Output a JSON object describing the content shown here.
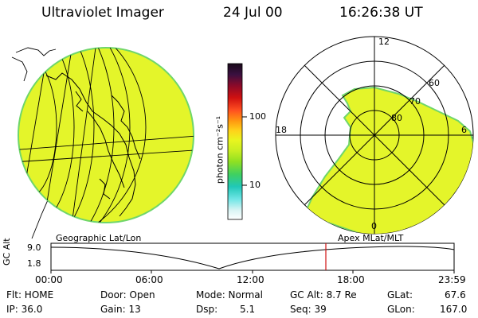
{
  "header": {
    "instrument": "Ultraviolet Imager",
    "date": "24 Jul 00",
    "time": "16:26:38 UT"
  },
  "colors": {
    "fill_main": "#e4f52a",
    "fill_edge": "#6fd66a",
    "grid": "#000000"
  },
  "colorbar": {
    "unit": "photon cm⁻²s⁻¹",
    "ticks": [
      "100",
      "10"
    ],
    "stops": [
      "#1a0a1a",
      "#3a1040",
      "#8a0a2a",
      "#d01010",
      "#ff5020",
      "#ff9a10",
      "#ffd21a",
      "#e9f51f",
      "#c8ee22",
      "#8fe022",
      "#40d060",
      "#20c8b8",
      "#70e6e6",
      "#d8f4f4",
      "#ffffff"
    ]
  },
  "left_panel": {
    "label": "Geographic Lat/Lon"
  },
  "right_panel": {
    "label": "Apex MLat/MLT",
    "mlt_labels": {
      "top": "12",
      "left": "18",
      "right": "6",
      "bottom": "0"
    },
    "lat_labels": [
      "60",
      "70",
      "80"
    ]
  },
  "timeline": {
    "ylabel": "GC Alt",
    "yticks": [
      "9.0",
      "1.8"
    ],
    "xticks": [
      "00:00",
      "06:00",
      "12:00",
      "18:00",
      "23:59"
    ],
    "current_time": "16:26"
  },
  "info": {
    "flt": "Flt: HOME",
    "ip": "IP: 36.0",
    "door": "Door: Open",
    "gain": "Gain: 13",
    "mode": "Mode: Normal",
    "dsp": "Dsp:",
    "dsp_val": "5.1",
    "gcalt": "GC Alt: 8.7 Re",
    "seq": "Seq: 39",
    "glat": "GLat:",
    "glat_val": "67.6",
    "glon": "GLon:",
    "glon_val": "167.0"
  }
}
